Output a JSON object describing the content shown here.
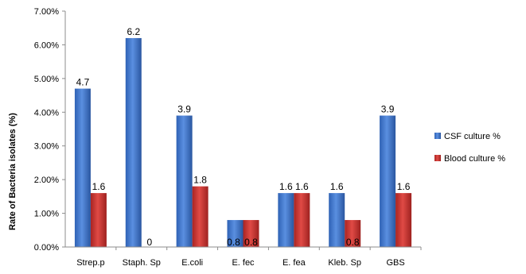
{
  "chart_data": {
    "type": "bar",
    "title": "",
    "xlabel": "",
    "ylabel": "Rate of Bacteria isolates (%)",
    "categories": [
      "Strep.p",
      "Staph. Sp",
      "E.coli",
      "E. fec",
      "E. fea",
      "Kleb. Sp",
      "GBS"
    ],
    "series": [
      {
        "name": "CSF culture %",
        "values": [
          4.7,
          6.2,
          3.9,
          0.8,
          1.6,
          1.6,
          3.9
        ],
        "labels": [
          "4.7",
          "6.2",
          "3.9",
          "0.8",
          "1.6",
          "1.6",
          "3.9"
        ],
        "color": "#3A72C8"
      },
      {
        "name": "Blood culture %",
        "values": [
          1.6,
          0,
          1.8,
          0.8,
          1.6,
          0.8,
          1.6
        ],
        "labels": [
          "1.6",
          "0",
          "1.8",
          "0.8",
          "1.6",
          "0.8",
          "1.6"
        ],
        "color": "#C8302E"
      }
    ],
    "ylim": [
      0,
      7
    ],
    "yticks": [
      0,
      1,
      2,
      3,
      4,
      5,
      6,
      7
    ],
    "ytick_labels": [
      "0.00%",
      "1.00%",
      "2.00%",
      "3.00%",
      "4.00%",
      "5.00%",
      "6.00%",
      "7.00%"
    ],
    "grid": false,
    "legend": "right"
  }
}
